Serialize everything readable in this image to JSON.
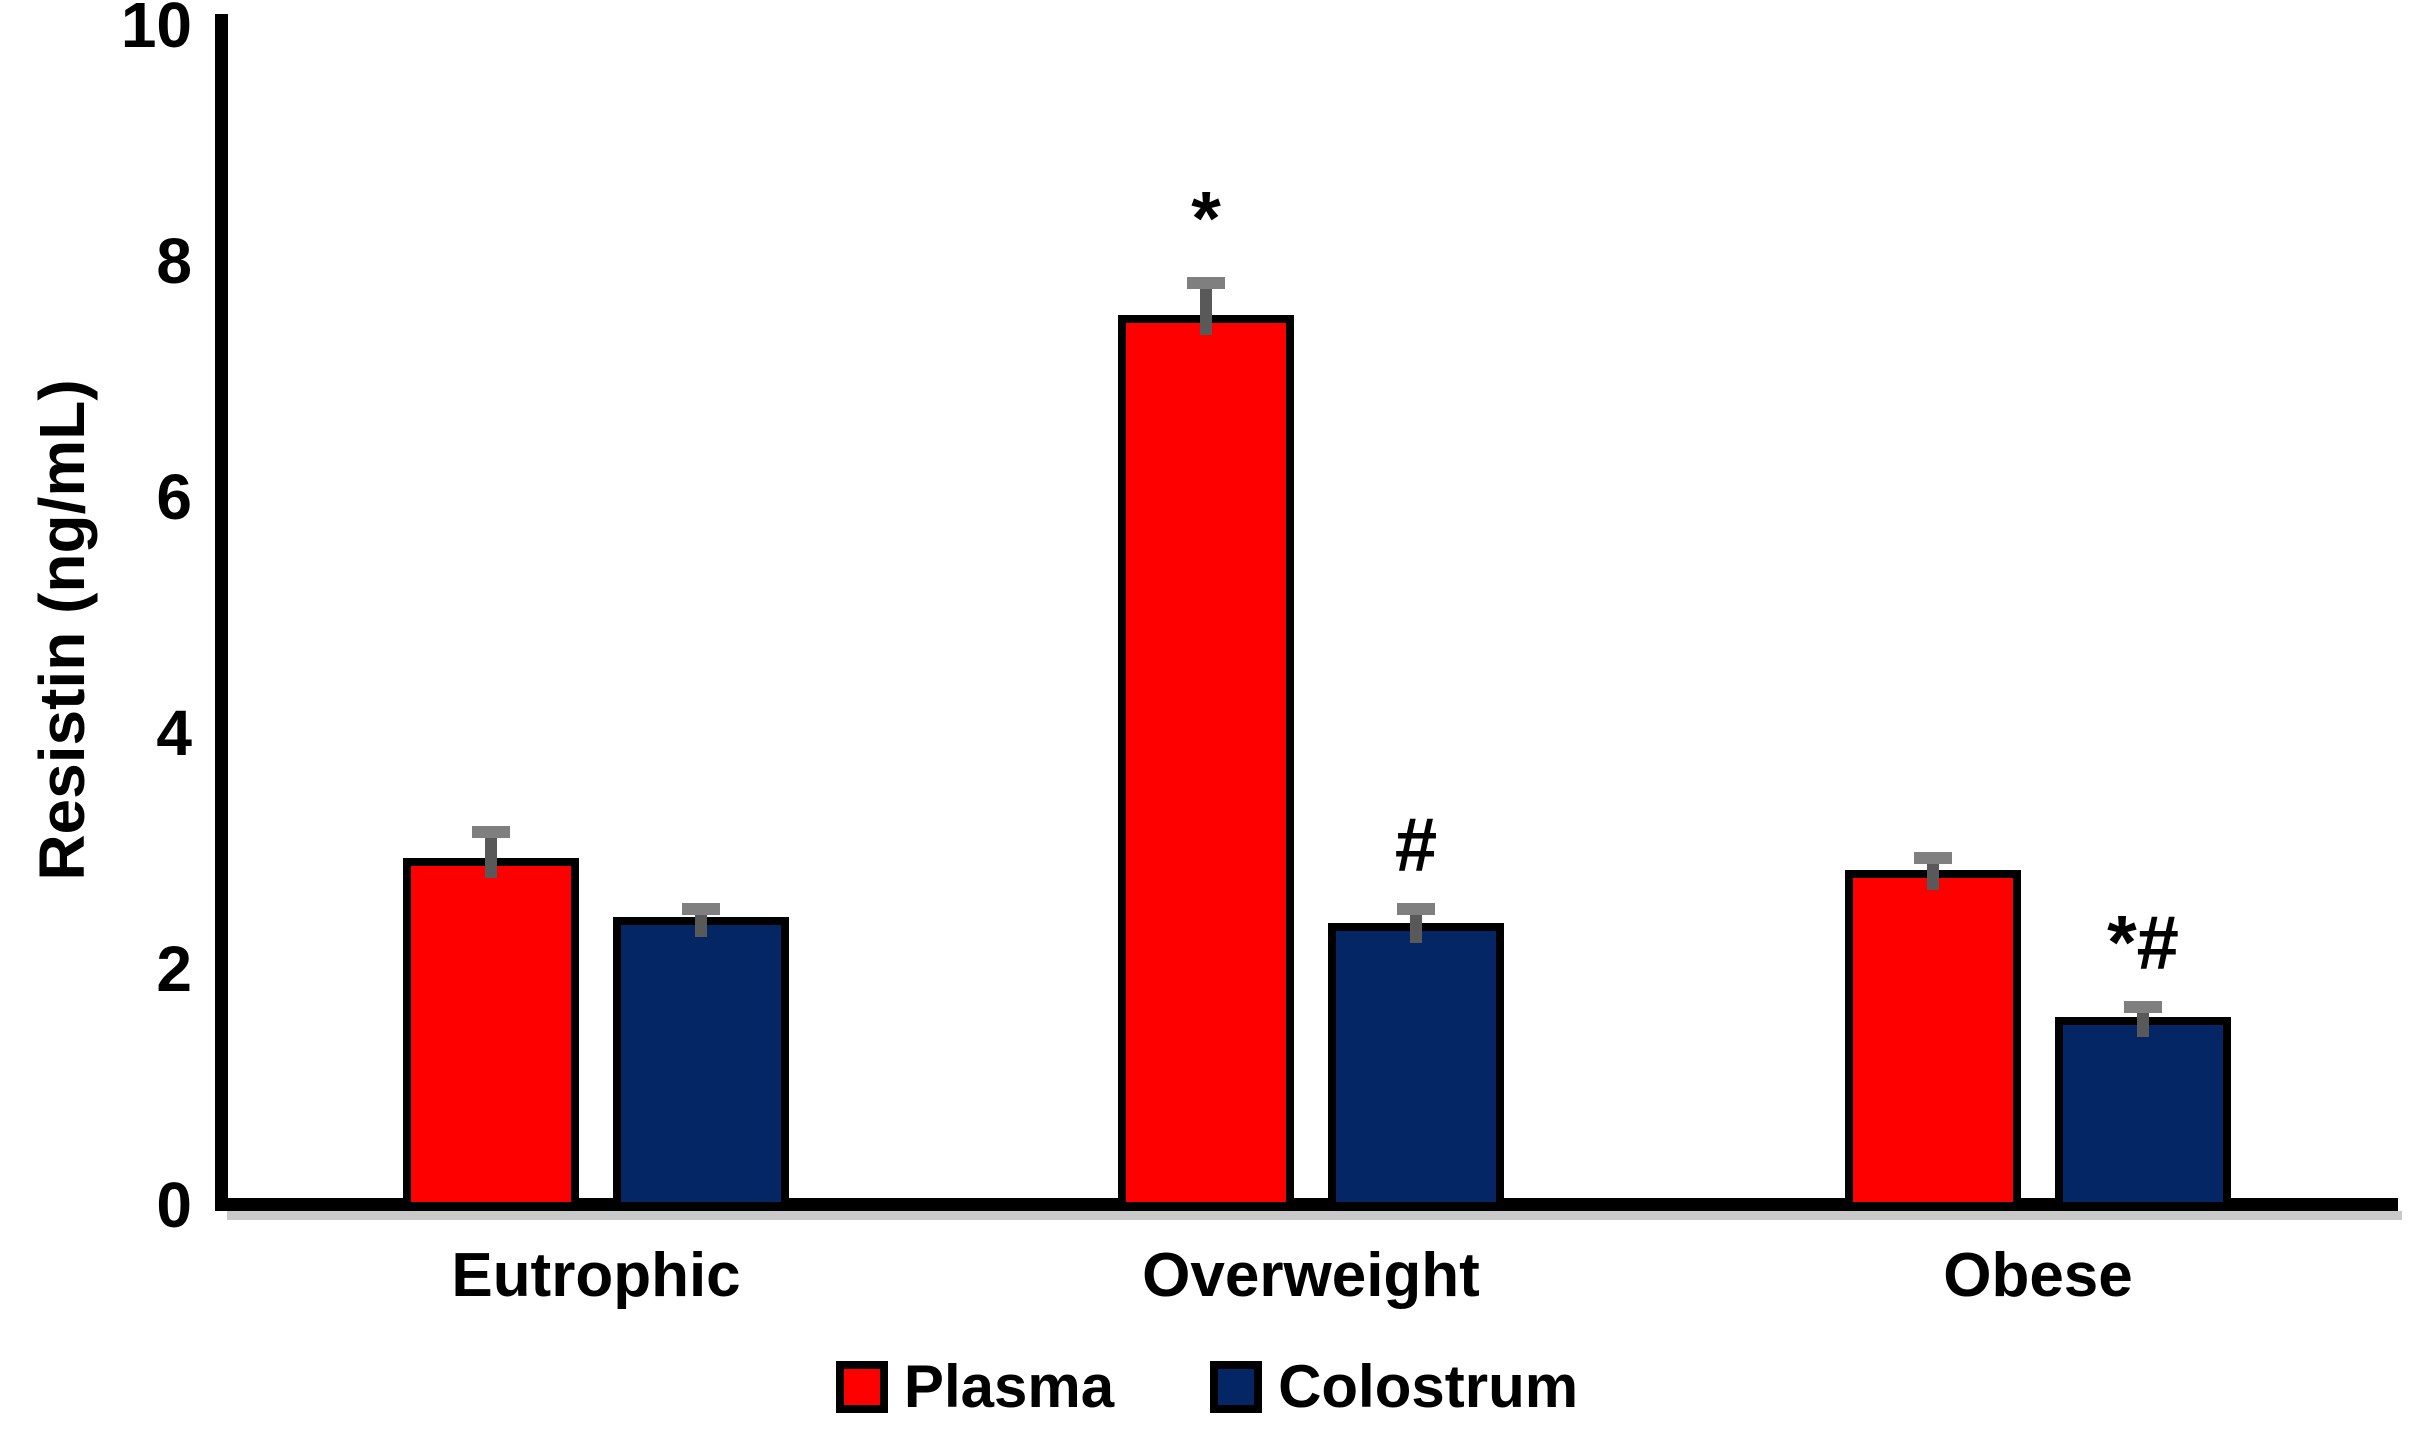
{
  "chart_data": {
    "type": "bar",
    "title": "",
    "ylabel": "Resistin (ng/mL)",
    "xlabel": "",
    "ylim": [
      0,
      10
    ],
    "yticks": [
      "0",
      "2",
      "4",
      "6",
      "8",
      "10"
    ],
    "grid": false,
    "legend_position": "bottom",
    "categories": [
      "Eutrophic",
      "Overweight",
      "Obese"
    ],
    "series": [
      {
        "name": "Plasma",
        "color": "#ff0000",
        "values": [
          2.9,
          7.5,
          2.8
        ],
        "errors": [
          0.3,
          0.36,
          0.18
        ]
      },
      {
        "name": "Colostrum",
        "color": "#052665",
        "values": [
          2.4,
          2.35,
          1.55
        ],
        "errors": [
          0.15,
          0.2,
          0.17
        ]
      }
    ],
    "annotations": [
      {
        "text": "*",
        "category": "Overweight",
        "series": "Plasma"
      },
      {
        "text": "#",
        "category": "Overweight",
        "series": "Colostrum"
      },
      {
        "text": "*#",
        "category": "Obese",
        "series": "Colostrum"
      }
    ]
  },
  "styles": {
    "bar_border_color": "#000000",
    "error_stem_color": "#595959",
    "error_cap_color": "#7f7f7f",
    "axis_color": "#000000",
    "axis_shadow_color": "#c9c9c9",
    "text_color": "#000000",
    "background": "#ffffff"
  }
}
